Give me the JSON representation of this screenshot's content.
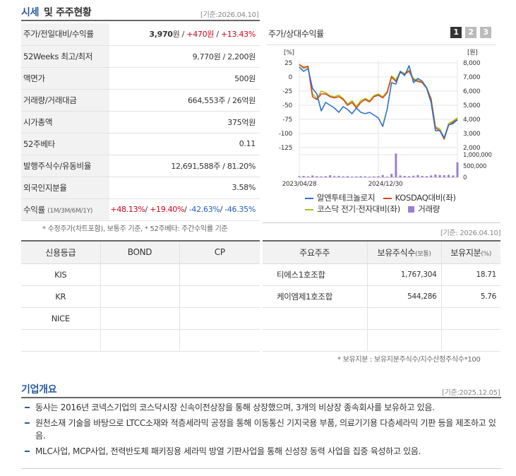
{
  "header": {
    "title_a": "시세",
    "title_b": "및 주주현황",
    "date": "[기준:2026.04.10]"
  },
  "info": {
    "rows": [
      {
        "label": "주가/전일대비/수익률"
      },
      {
        "label": "52Weeks 최고/최저",
        "value": "9,770원 / 2,200원"
      },
      {
        "label": "액면가",
        "value": "500원"
      },
      {
        "label": "거래량/거래대금",
        "value": "664,553주 / 26억원"
      },
      {
        "label": "시가총액",
        "value": "375억원"
      },
      {
        "label": "52주베타",
        "value": "0.11"
      },
      {
        "label": "발행주식수/유동비율",
        "value": "12,691,588주 / 81.20%"
      },
      {
        "label": "외국인지분율",
        "value": "3.58%"
      },
      {
        "label": "수익률",
        "sub": "(1M/3M/6M/1Y)"
      }
    ],
    "price": "3,970",
    "won": "원 / ",
    "change": "+470원",
    "sep": " / ",
    "rate": "+13.43%",
    "ret": [
      "+48.13%",
      "/",
      "+19.40%",
      "/",
      "-42.63%",
      "/",
      "-46.35%"
    ]
  },
  "info_note": "* 수정주가(차트포함), 보통주 기준, * 52주베타: 주간수익률 기준",
  "chart": {
    "title": "주가/상대수익률",
    "tabs": [
      "1",
      "2",
      "3"
    ],
    "left_unit": "[%]",
    "right_unit": "[원]",
    "left_ticks": [
      "25",
      "0",
      "-25",
      "-50",
      "-75",
      "-100",
      "-125"
    ],
    "right_ticks": [
      "8,000",
      "7,000",
      "6,000",
      "5,000",
      "4,000",
      "3,000",
      "2,000"
    ],
    "vol_ticks": [
      "1,000,000",
      "500,000",
      "0"
    ],
    "x_ticks": [
      "2023/04/28",
      "2024/12/30"
    ],
    "legend": [
      "알엔투테크놀로지",
      "KOSDAQ대비(좌)",
      "코스닥 전기·전자대비(좌)",
      "거래량"
    ],
    "colors": {
      "stock": "#2f6fd1",
      "kosdaq": "#d9431e",
      "sector": "#a6c21c",
      "volume": "#9b7fd0"
    }
  },
  "chart_data": {
    "type": "line",
    "x": [
      "2023/04",
      "2023/05",
      "2023/06",
      "2023/07",
      "2023/08",
      "2023/09",
      "2023/10",
      "2023/11",
      "2023/12",
      "2024/01",
      "2024/02",
      "2024/03",
      "2024/04",
      "2024/05",
      "2024/06",
      "2024/07",
      "2024/08",
      "2024/09",
      "2024/10",
      "2024/11",
      "2024/12",
      "2025/01",
      "2025/02",
      "2025/03",
      "2025/04",
      "2025/05",
      "2025/06",
      "2025/07",
      "2025/08",
      "2025/09",
      "2025/10",
      "2025/11",
      "2025/12",
      "2026/01",
      "2026/02",
      "2026/03",
      "2026/04"
    ],
    "series": [
      {
        "name": "알엔투테크놀로지",
        "values": [
          7700,
          7400,
          7600,
          6200,
          5800,
          4600,
          5200,
          5000,
          4800,
          4500,
          4900,
          4700,
          4400,
          4800,
          4500,
          4400,
          4500,
          4300,
          4100,
          3500,
          4700,
          6600,
          6500,
          7400,
          7100,
          7800,
          6600,
          6900,
          6700,
          6200,
          5200,
          3200,
          3200,
          2700,
          3600,
          3700,
          3970
        ]
      },
      {
        "name": "KOSDAQ대비(좌)",
        "values": [
          22,
          17,
          19,
          -35,
          -40,
          -30,
          -30,
          -35,
          -37,
          -35,
          -40,
          -50,
          -45,
          -55,
          -45,
          -40,
          -44,
          -35,
          -32,
          -37,
          -28,
          0,
          -8,
          8,
          5,
          10,
          -5,
          -8,
          -10,
          -20,
          -40,
          -90,
          -95,
          -110,
          -85,
          -80,
          -75
        ]
      },
      {
        "name": "코스닥 전기·전자대비(좌)",
        "values": [
          22,
          15,
          18,
          -30,
          -38,
          -25,
          -28,
          -33,
          -35,
          -32,
          -38,
          -48,
          -42,
          -52,
          -42,
          -38,
          -42,
          -33,
          -30,
          -35,
          -26,
          2,
          -5,
          10,
          6,
          12,
          -3,
          -6,
          -8,
          -18,
          -38,
          -88,
          -92,
          -108,
          -82,
          -78,
          -72
        ]
      },
      {
        "name": "거래량",
        "values": [
          50000,
          60000,
          40000,
          80000,
          50000,
          40000,
          50000,
          90000,
          50000,
          60000,
          40000,
          50000,
          30000,
          40000,
          50000,
          40000,
          30000,
          40000,
          50000,
          100000,
          30000,
          150000,
          1050000,
          80000,
          60000,
          50000,
          70000,
          100000,
          60000,
          50000,
          80000,
          120000,
          100000,
          90000,
          110000,
          80000,
          660000
        ]
      }
    ],
    "ylim_left": [
      -125,
      25
    ],
    "ylim_right": [
      2000,
      8000
    ]
  },
  "credit": {
    "headers": [
      "신용등급",
      "BOND",
      "CP"
    ],
    "rows": [
      [
        "KIS",
        "",
        ""
      ],
      [
        "KR",
        "",
        ""
      ],
      [
        "NICE",
        "",
        ""
      ],
      [
        "",
        "",
        ""
      ]
    ]
  },
  "holders": {
    "date": "[기준: 2026.04.10]",
    "headers": [
      "주요주주",
      "보유주식수",
      "(보통)",
      "보유지분",
      "(%)"
    ],
    "rows": [
      [
        "티에스1호조합",
        "1,767,304",
        "18.71"
      ],
      [
        "케이엠제1호조합",
        "544,286",
        "5.76"
      ],
      [
        "",
        "",
        ""
      ],
      [
        "",
        "",
        ""
      ]
    ],
    "note": "* 보유지분 : 보유지분주식수/지수산정주식수*100"
  },
  "overview": {
    "title": "기업개요",
    "date": "[기준:2025.12.05]",
    "bullets": [
      "동사는 2016년 코넥스기업의 코스닥시장 신속이전상장을 통해 상장했으며, 3개의 비상장 종속회사를 보유하고 있음.",
      "원천소재 기술을 바탕으로 LTCC소재와 적층세라믹 공정을 통해 이동통신 기지국용 부품, 의료기기용 다층세라믹 기판 등을 제조하고 있음.",
      "MLC사업, MCP사업, 전력반도체 패키징용 세라믹 방열 기판사업을 통해 신성장 동력 사업을 집중 육성하고 있음."
    ]
  }
}
